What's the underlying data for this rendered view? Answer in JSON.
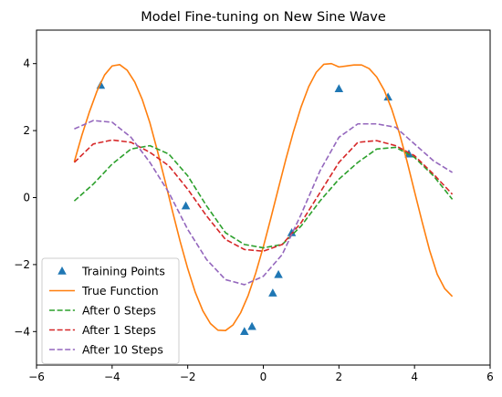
{
  "chart_data": {
    "type": "line",
    "title": "Model Fine-tuning on New Sine Wave",
    "xlabel": "",
    "ylabel": "",
    "xlim": [
      -6,
      6
    ],
    "ylim": [
      -5,
      5
    ],
    "xticks": [
      -6,
      -4,
      -2,
      0,
      2,
      4,
      6
    ],
    "yticks": [
      -4,
      -2,
      0,
      2,
      4
    ],
    "xtick_labels": [
      "−6",
      "−4",
      "−2",
      "0",
      "2",
      "4",
      "6"
    ],
    "ytick_labels": [
      "−4",
      "−2",
      "0",
      "2",
      "4"
    ],
    "grid": false,
    "legend": {
      "position": "lower-left"
    },
    "series": [
      {
        "name": "Training Points",
        "kind": "scatter",
        "marker": "triangle",
        "color": "#1f77b4",
        "x": [
          -4.3,
          -2.05,
          -0.5,
          -0.3,
          0.25,
          0.4,
          0.75,
          2.0,
          3.3,
          3.85
        ],
        "y": [
          3.35,
          -0.25,
          -4.0,
          -3.85,
          -2.85,
          -2.3,
          -1.05,
          3.25,
          3.0,
          1.3
        ]
      },
      {
        "name": "True Function",
        "kind": "line",
        "style": "solid",
        "color": "#ff7f0e",
        "x": [
          -5.0,
          -4.8,
          -4.6,
          -4.4,
          -4.2,
          -4.0,
          -3.8,
          -3.6,
          -3.4,
          -3.2,
          -3.0,
          -2.8,
          -2.6,
          -2.4,
          -2.2,
          -2.0,
          -1.8,
          -1.6,
          -1.4,
          -1.2,
          -1.0,
          -0.8,
          -0.6,
          -0.4,
          -0.2,
          0.0,
          0.2,
          0.4,
          0.6,
          0.8,
          1.0,
          1.2,
          1.4,
          1.6,
          1.8,
          2.0,
          2.2,
          2.4,
          2.6,
          2.8,
          3.0,
          3.2,
          3.4,
          3.6,
          3.8,
          4.0,
          4.2,
          4.4,
          4.6,
          4.8,
          5.0
        ],
        "y": [
          1.07,
          1.86,
          2.56,
          3.18,
          3.66,
          3.93,
          3.97,
          3.8,
          3.45,
          2.92,
          2.23,
          1.39,
          0.5,
          -0.42,
          -1.31,
          -2.12,
          -2.83,
          -3.38,
          -3.76,
          -3.96,
          -3.97,
          -3.8,
          -3.44,
          -2.92,
          -2.25,
          -1.47,
          -0.61,
          0.28,
          1.16,
          1.98,
          2.71,
          3.31,
          3.74,
          3.98,
          4.0,
          3.9,
          3.93,
          3.96,
          3.96,
          3.85,
          3.6,
          3.2,
          2.63,
          1.92,
          1.09,
          0.18,
          -0.72,
          -1.58,
          -2.29,
          -2.72,
          -2.95
        ]
      },
      {
        "name": "After 0 Steps",
        "kind": "line",
        "style": "dashed",
        "color": "#2ca02c",
        "x": [
          -5.0,
          -4.5,
          -4.0,
          -3.5,
          -3.0,
          -2.5,
          -2.0,
          -1.5,
          -1.0,
          -0.5,
          0.0,
          0.5,
          1.0,
          1.5,
          2.0,
          2.5,
          3.0,
          3.5,
          4.0,
          4.5,
          5.0
        ],
        "y": [
          -0.1,
          0.4,
          1.0,
          1.45,
          1.55,
          1.3,
          0.65,
          -0.25,
          -1.05,
          -1.4,
          -1.5,
          -1.4,
          -0.85,
          -0.1,
          0.55,
          1.05,
          1.45,
          1.5,
          1.2,
          0.65,
          -0.05
        ]
      },
      {
        "name": "After 1 Steps",
        "kind": "line",
        "style": "dashed",
        "color": "#d62728",
        "x": [
          -5.0,
          -4.5,
          -4.0,
          -3.5,
          -3.0,
          -2.5,
          -2.0,
          -1.5,
          -1.0,
          -0.5,
          0.0,
          0.5,
          1.0,
          1.5,
          2.0,
          2.5,
          3.0,
          3.5,
          4.0,
          4.5,
          5.0
        ],
        "y": [
          1.05,
          1.6,
          1.72,
          1.65,
          1.35,
          0.95,
          0.25,
          -0.55,
          -1.25,
          -1.55,
          -1.6,
          -1.4,
          -0.75,
          0.15,
          1.05,
          1.65,
          1.7,
          1.55,
          1.25,
          0.7,
          0.1
        ]
      },
      {
        "name": "After 10 Steps",
        "kind": "line",
        "style": "dashed",
        "color": "#9467bd",
        "x": [
          -5.0,
          -4.5,
          -4.0,
          -3.5,
          -3.0,
          -2.5,
          -2.0,
          -1.5,
          -1.0,
          -0.5,
          0.0,
          0.5,
          1.0,
          1.5,
          2.0,
          2.5,
          3.0,
          3.5,
          4.0,
          4.5,
          5.0
        ],
        "y": [
          2.05,
          2.3,
          2.25,
          1.8,
          1.05,
          0.15,
          -0.95,
          -1.85,
          -2.45,
          -2.6,
          -2.35,
          -1.7,
          -0.5,
          0.8,
          1.8,
          2.2,
          2.2,
          2.1,
          1.6,
          1.1,
          0.75
        ]
      }
    ]
  }
}
